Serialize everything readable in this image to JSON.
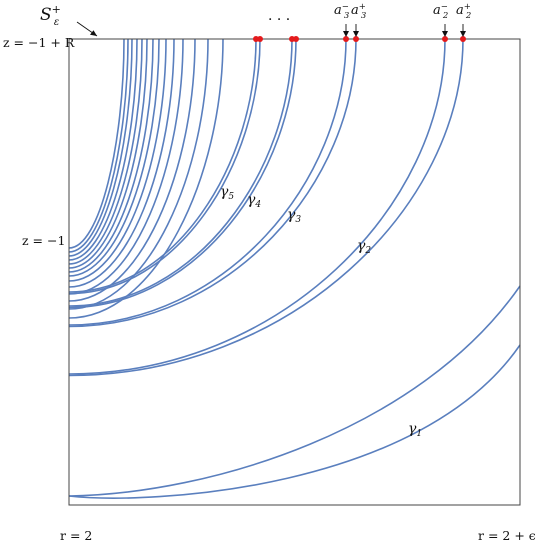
{
  "labels": {
    "s_top": "S",
    "s_sup": "+",
    "s_sub": "ε",
    "z_top": "z = −1 + R",
    "z_mid": "z = −1",
    "r_left": "r = 2",
    "r_right": "r = 2 + ϵ",
    "dots": "· · ·",
    "a3m": "a",
    "a3m_sup": "−",
    "a3m_sub": "3",
    "a3p": "a",
    "a3p_sup": "+",
    "a3p_sub": "3",
    "a2m": "a",
    "a2m_sup": "−",
    "a2m_sub": "2",
    "a2p": "a",
    "a2p_sup": "+",
    "a2p_sub": "2",
    "g1": "γ",
    "g1_sub": "1",
    "g2": "γ",
    "g2_sub": "2",
    "g3": "γ",
    "g3_sub": "3",
    "g4": "γ",
    "g4_sub": "4",
    "g5": "γ",
    "g5_sub": "5"
  },
  "colors": {
    "curve": "#5a7fbe",
    "point": "#e41a1c",
    "frame": "#444444"
  }
}
